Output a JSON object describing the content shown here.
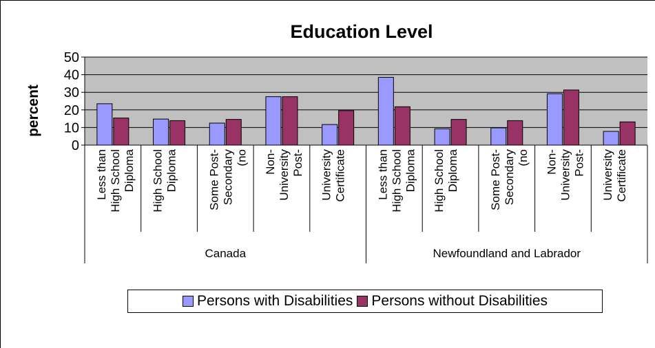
{
  "chart_data": {
    "type": "bar",
    "title": "Education Level",
    "xlabel": "",
    "ylabel": "percent",
    "ylim": [
      0,
      50
    ],
    "yticks": [
      0,
      10,
      20,
      30,
      40,
      50
    ],
    "grid": true,
    "legend_position": "bottom",
    "groups": [
      {
        "label": "Canada",
        "categories": [
          [
            "Less than",
            "High School",
            "Diploma"
          ],
          [
            "High School",
            "Diploma"
          ],
          [
            "Some Post-",
            "Secondary",
            "(no"
          ],
          [
            "Non-",
            "University",
            "Post-"
          ],
          [
            "University",
            "Certificate"
          ]
        ]
      },
      {
        "label": "Newfoundland and Labrador",
        "categories": [
          [
            "Less than",
            "High School",
            "Diploma"
          ],
          [
            "High School",
            "Diploma"
          ],
          [
            "Some Post-",
            "Secondary",
            "(no"
          ],
          [
            "Non-",
            "University",
            "Post-"
          ],
          [
            "University",
            "Certificate"
          ]
        ]
      }
    ],
    "series": [
      {
        "name": "Persons with Disabilities",
        "color": "#9999ff",
        "values": [
          23.5,
          14.8,
          12.5,
          27.5,
          11.7,
          38.5,
          9.3,
          9.8,
          29.2,
          7.8
        ]
      },
      {
        "name": "Persons without Disabilities",
        "color": "#993366",
        "values": [
          15.4,
          13.9,
          14.6,
          27.5,
          19.6,
          21.8,
          14.6,
          13.9,
          31.3,
          13.2
        ]
      }
    ]
  }
}
